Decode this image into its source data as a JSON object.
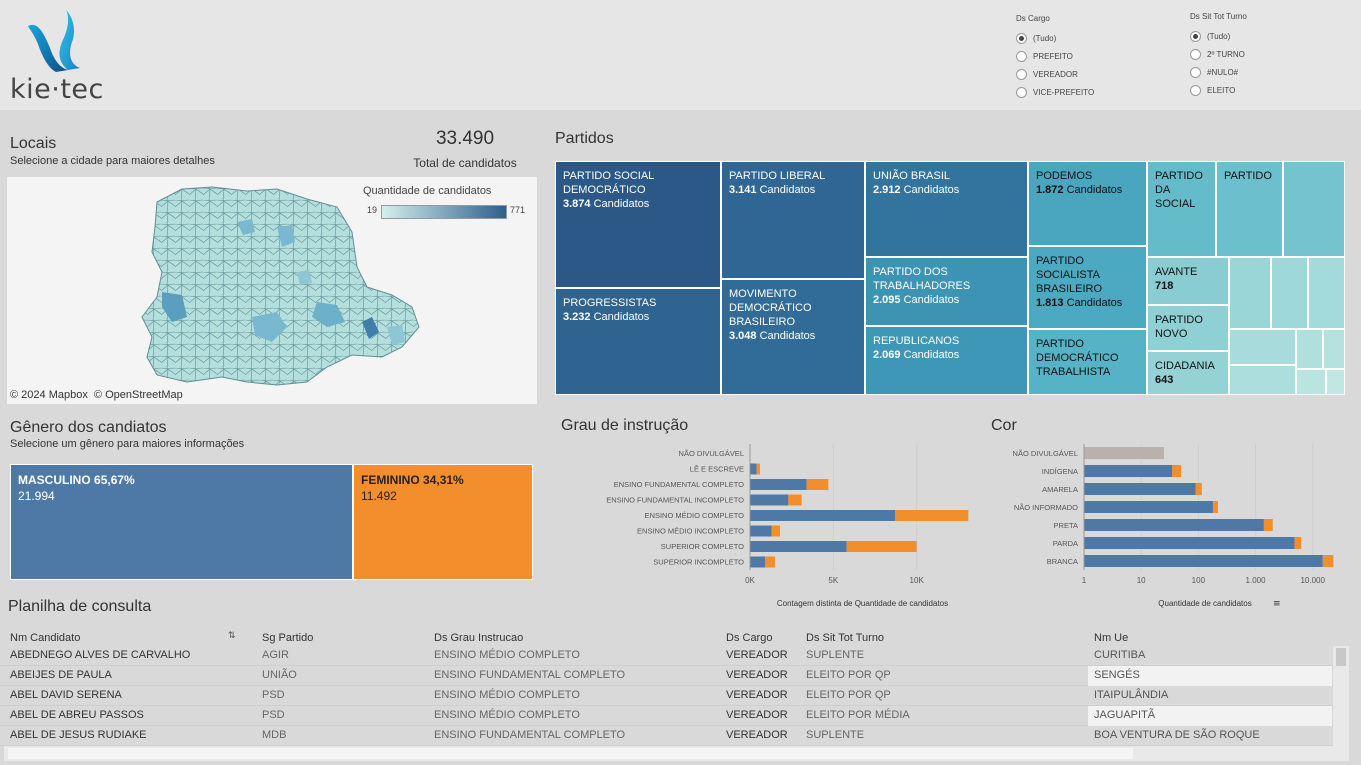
{
  "brand": {
    "logo_text": "kie·tec"
  },
  "filters": {
    "cargo": {
      "title": "Ds Cargo",
      "options": [
        "(Tudo)",
        "PREFEITO",
        "VEREADOR",
        "VICE-PREFEITO"
      ],
      "selected": "(Tudo)"
    },
    "turno": {
      "title": "Ds Sit Tot Turno",
      "options": [
        "(Tudo)",
        "2º TURNO",
        "#NULO#",
        "ELEITO"
      ],
      "selected": "(Tudo)"
    }
  },
  "locais": {
    "title": "Locais",
    "subtitle": "Selecione a cidade para maiores detalhes",
    "total_value": "33.490",
    "total_label": "Total de candidatos",
    "legend_title": "Quantidade de candidatos",
    "legend_min": "19",
    "legend_max": "771",
    "attribution": "© 2024 Mapbox  © OpenStreetMap"
  },
  "partidos": {
    "title": "Partidos",
    "cells": [
      {
        "name": "PARTIDO SOCIAL DEMOCRÁTICO",
        "value": "3.874",
        "unit": "Candidatos",
        "color": "#2c5887"
      },
      {
        "name": "PROGRESSISTAS",
        "value": "3.232",
        "unit": "Candidatos",
        "color": "#2f6390"
      },
      {
        "name": "PARTIDO LIBERAL",
        "value": "3.141",
        "unit": "Candidatos",
        "color": "#306694"
      },
      {
        "name": "MOVIMENTO DEMOCRÁTICO BRASILEIRO",
        "value": "3.048",
        "unit": "Candidatos",
        "color": "#316b98"
      },
      {
        "name": "UNIÃO BRASIL",
        "value": "2.912",
        "unit": "Candidatos",
        "color": "#32749e"
      },
      {
        "name": "PARTIDO DOS TRABALHADORES",
        "value": "2.095",
        "unit": "Candidatos",
        "color": "#3c93b3"
      },
      {
        "name": "REPUBLICANOS",
        "value": "2.069",
        "unit": "Candidatos",
        "color": "#3e97b6"
      },
      {
        "name": "PODEMOS",
        "value": "1.872",
        "unit": "Candidatos",
        "color": "#4aa5bf"
      },
      {
        "name": "PARTIDO SOCIALISTA BRASILEIRO",
        "value": "1.813",
        "unit": "Candidatos",
        "color": "#4ca9c2"
      },
      {
        "name": "PARTIDO DEMOCRÁTICO TRABALHISTA",
        "value": "",
        "unit": "",
        "color": "#55b2c7"
      },
      {
        "name": "PARTIDO DA SOCIAL",
        "value": "",
        "unit": "",
        "color": "#64bcca"
      },
      {
        "name": "PARTIDO",
        "value": "",
        "unit": "",
        "color": "#6cbfcc"
      },
      {
        "name": "AVANTE",
        "value": "718",
        "unit": "",
        "color": "#89cdd3"
      },
      {
        "name": "PARTIDO NOVO",
        "value": "",
        "unit": "",
        "color": "#8fd0d5"
      },
      {
        "name": "CIDADANIA",
        "value": "643",
        "unit": "",
        "color": "#94d2d6"
      }
    ]
  },
  "genero": {
    "title": "Gênero dos candiatos",
    "subtitle": "Selecione um gênero para maiores informações",
    "masculino": {
      "label": "MASCULINO",
      "pct": "65,67%",
      "count": "21.994",
      "color": "#4e79a7"
    },
    "feminino": {
      "label": "FEMININO",
      "pct": "34,31%",
      "count": "11.492",
      "color": "#f28e2b"
    }
  },
  "chart_data": [
    {
      "type": "bar",
      "title": "Grau de instrução",
      "xlabel": "Contagem distinta de Quantidade de candidatos",
      "categories": [
        "NÃO DIVULGÁVEL",
        "LÊ E ESCREVE",
        "ENSINO FUNDAMENTAL COMPLETO",
        "ENSINO FUNDAMENTAL INCOMPLETO",
        "ENSINO MÉDIO COMPLETO",
        "ENSINO MÉDIO INCOMPLETO",
        "SUPERIOR COMPLETO",
        "SUPERIOR INCOMPLETO"
      ],
      "series": [
        {
          "values": [
            0,
            400,
            3400,
            2300,
            8700,
            1300,
            5800,
            900
          ],
          "color": "#4e79a7"
        },
        {
          "values": [
            0,
            200,
            1300,
            800,
            4400,
            500,
            4200,
            600
          ],
          "color": "#f28e2b"
        }
      ],
      "xlim": [
        0,
        13500
      ],
      "xticks": [
        "0K",
        "5K",
        "10K"
      ],
      "xtick_values": [
        0,
        5000,
        10000
      ]
    },
    {
      "type": "bar",
      "title": "Cor",
      "xlabel": "Quantidade de candidatos",
      "scale": "log",
      "categories": [
        "NÃO DIVULGÁVEL",
        "INDÍGENA",
        "AMARELA",
        "NÃO INFORMADO",
        "PRETA",
        "PARDA",
        "BRANCA"
      ],
      "series": [
        {
          "values": [
            25,
            35,
            90,
            180,
            1400,
            4800,
            15000
          ],
          "color": "#4e79a7"
        },
        {
          "values": [
            0,
            15,
            25,
            40,
            600,
            1500,
            8000
          ],
          "color": "#f28e2b"
        }
      ],
      "null_color": "#bab0ac",
      "xlim": [
        1,
        30000
      ],
      "xticks": [
        "1",
        "10",
        "100",
        "1.000",
        "10.000"
      ],
      "xtick_values": [
        1,
        10,
        100,
        1000,
        10000
      ]
    }
  ],
  "planilha": {
    "title": "Planilha de consulta",
    "columns": [
      "Nm Candidato",
      "Sg Partido",
      "Ds Grau Instrucao",
      "Ds Cargo",
      "Ds Sit Tot Turno",
      "Nm Ue"
    ],
    "rows": [
      [
        "ABEDNEGO ALVES DE CARVALHO",
        "AGIR",
        "ENSINO MÉDIO COMPLETO",
        "VEREADOR",
        "SUPLENTE",
        "CURITIBA"
      ],
      [
        "ABEIJES DE PAULA",
        "UNIÃO",
        "ENSINO FUNDAMENTAL COMPLETO",
        "VEREADOR",
        "ELEITO POR QP",
        "SENGÉS"
      ],
      [
        "ABEL DAVID SERENA",
        "PSD",
        "ENSINO MÉDIO COMPLETO",
        "VEREADOR",
        "ELEITO POR QP",
        "ITAIPULÂNDIA"
      ],
      [
        "ABEL DE ABREU PASSOS",
        "PSD",
        "ENSINO MÉDIO COMPLETO",
        "VEREADOR",
        "ELEITO POR MÉDIA",
        "JAGUAPITÃ"
      ],
      [
        "ABEL DE JESUS RUDIAKE",
        "MDB",
        "ENSINO FUNDAMENTAL COMPLETO",
        "VEREADOR",
        "SUPLENTE",
        "BOA VENTURA DE SÃO ROQUE"
      ]
    ]
  }
}
